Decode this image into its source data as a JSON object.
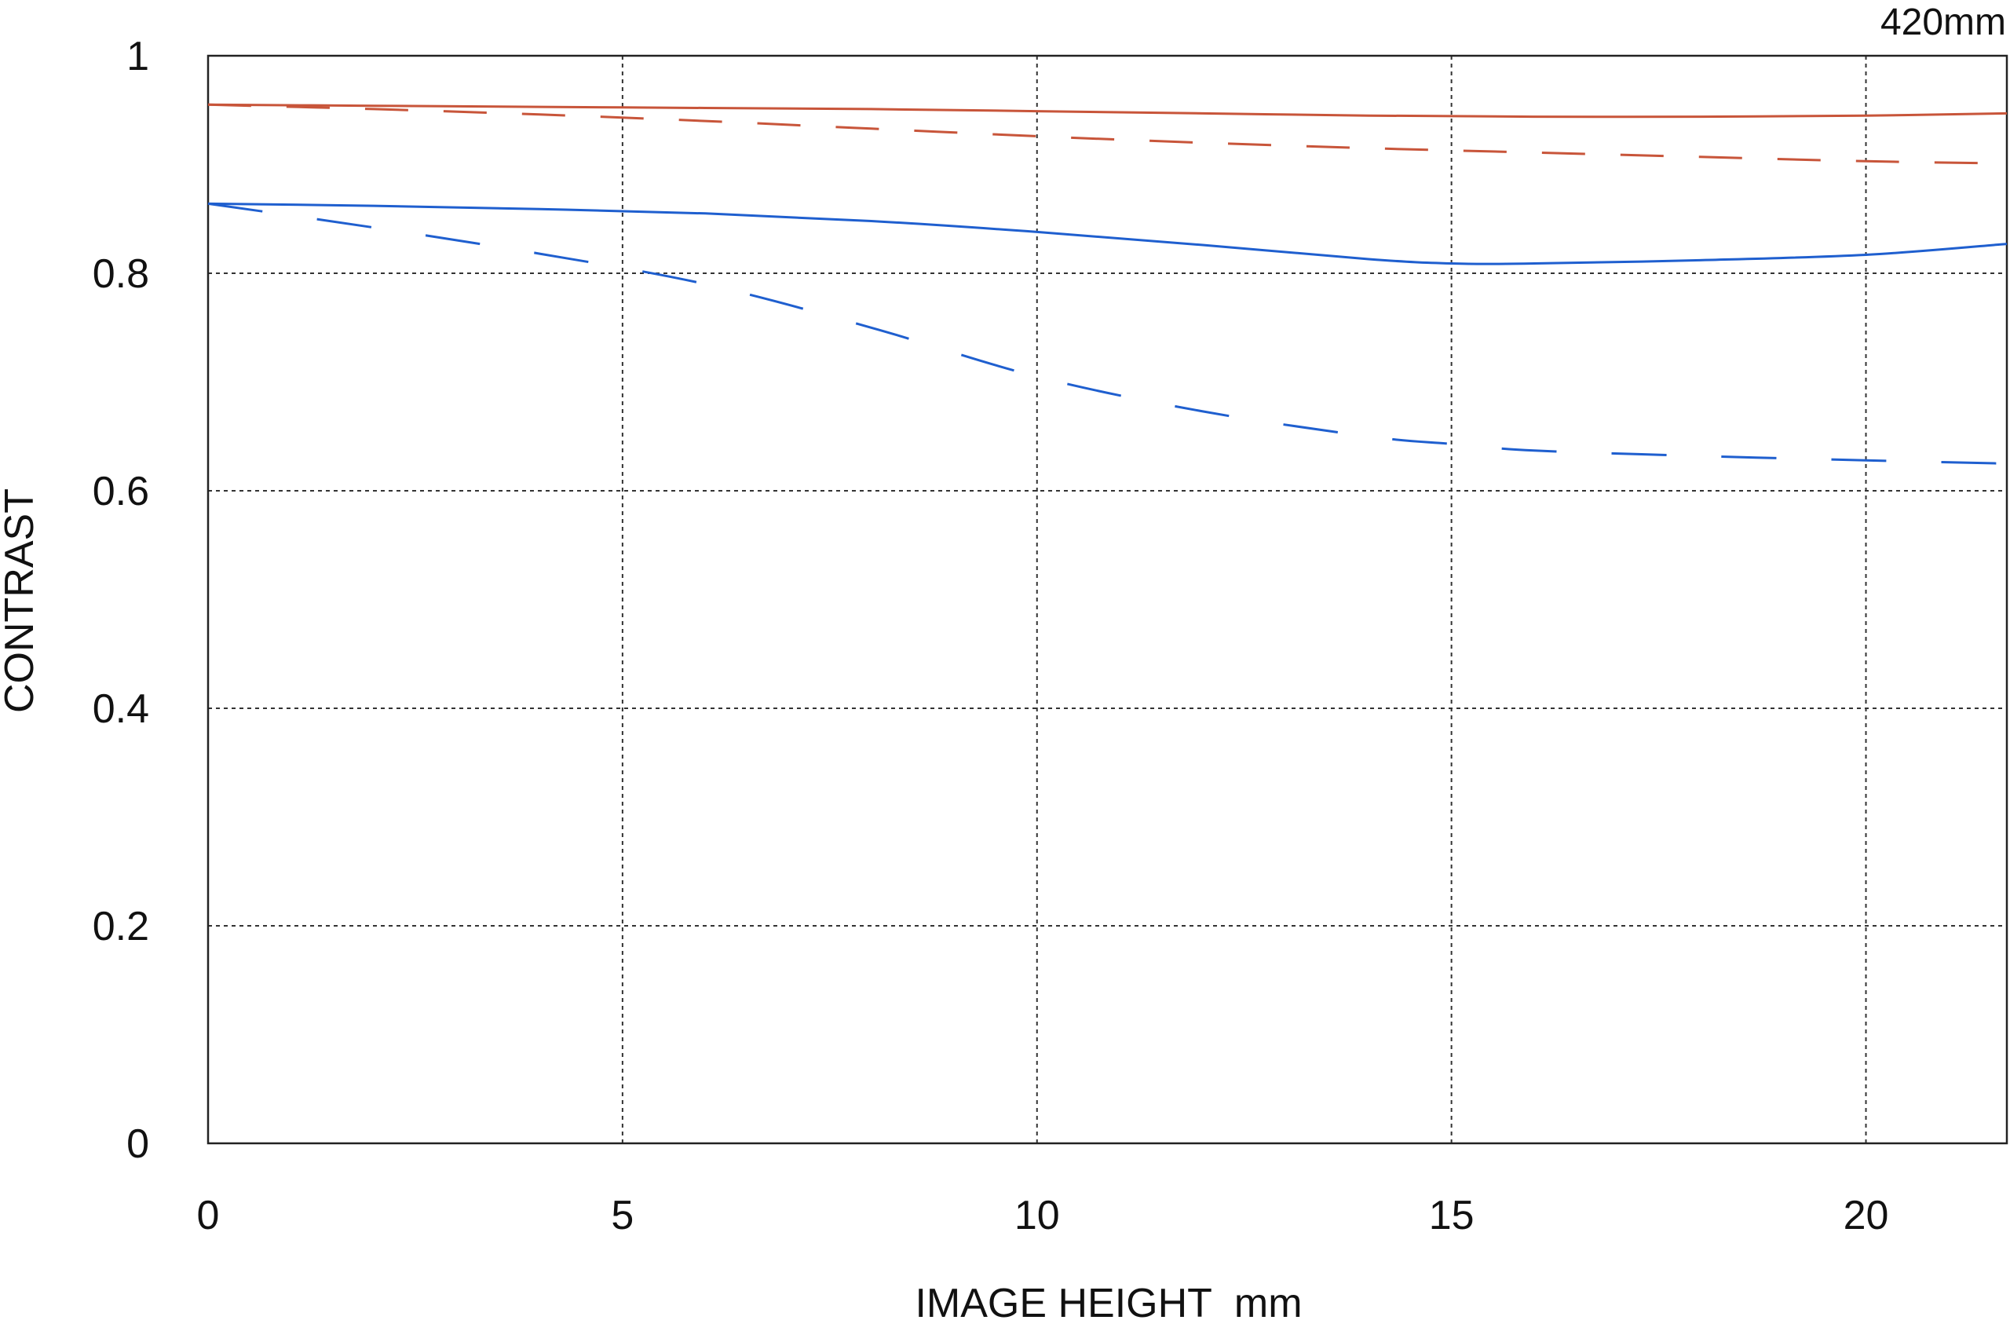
{
  "chart_data": {
    "type": "line",
    "title": "420mm",
    "xlabel": "IMAGE HEIGHT  mm",
    "ylabel": "CONTRAST",
    "xlim": [
      0,
      21.7
    ],
    "ylim": [
      0,
      1
    ],
    "x_ticks": [
      0,
      5,
      10,
      15,
      20
    ],
    "x_tick_labels": [
      "0",
      "5",
      "10",
      "15",
      "20"
    ],
    "y_ticks": [
      0,
      0.2,
      0.4,
      0.6,
      0.8,
      1
    ],
    "y_tick_labels": [
      "0",
      "0.2",
      "0.4",
      "0.6",
      "0.8",
      "1"
    ],
    "grid": true,
    "legend": "none",
    "series": [
      {
        "color": "#c8553a",
        "style": "solid",
        "x": [
          0,
          2,
          4,
          6,
          8,
          10,
          12,
          14,
          16,
          18,
          20,
          21.7
        ],
        "y": [
          0.955,
          0.954,
          0.953,
          0.952,
          0.951,
          0.949,
          0.947,
          0.945,
          0.944,
          0.944,
          0.945,
          0.947
        ]
      },
      {
        "color": "#c8553a",
        "style": "dashed",
        "x": [
          0,
          2,
          4,
          6,
          8,
          10,
          12,
          14,
          16,
          18,
          20,
          21.7
        ],
        "y": [
          0.955,
          0.951,
          0.946,
          0.94,
          0.933,
          0.926,
          0.92,
          0.915,
          0.911,
          0.907,
          0.903,
          0.901
        ]
      },
      {
        "color": "#1f5fcf",
        "style": "solid",
        "x": [
          0,
          2,
          4,
          6,
          8,
          10,
          12,
          14,
          15,
          16,
          18,
          20,
          21.7
        ],
        "y": [
          0.864,
          0.862,
          0.859,
          0.855,
          0.848,
          0.838,
          0.826,
          0.813,
          0.809,
          0.809,
          0.812,
          0.817,
          0.827
        ]
      },
      {
        "color": "#1f5fcf",
        "style": "dashed",
        "x": [
          0,
          2,
          4,
          6,
          8,
          10,
          12,
          14,
          15,
          16,
          18,
          20,
          21.7
        ],
        "y": [
          0.864,
          0.842,
          0.818,
          0.79,
          0.75,
          0.705,
          0.673,
          0.65,
          0.643,
          0.637,
          0.632,
          0.628,
          0.625
        ]
      }
    ]
  }
}
